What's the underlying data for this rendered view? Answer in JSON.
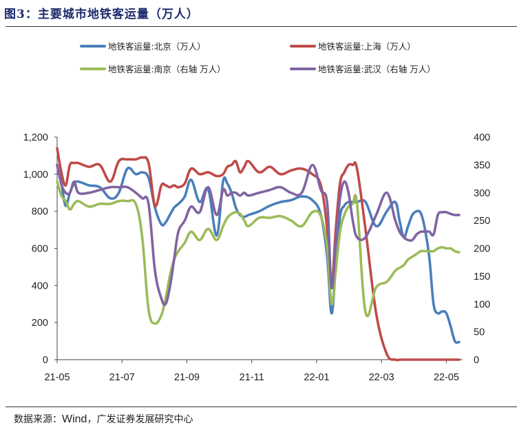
{
  "header": {
    "title": "图3：主要城市地铁客运量（万人）"
  },
  "footer": {
    "source_label": "数据来源：",
    "source_name": "Wind",
    "source_org": "，广发证券发展研究中心"
  },
  "chart_data": {
    "type": "line",
    "title": "图3：主要城市地铁客运量（万人）",
    "x_tick_labels": [
      "21-05",
      "21-07",
      "21-09",
      "21-11",
      "22-01",
      "22-03",
      "22-05"
    ],
    "x_range_days": [
      0,
      380
    ],
    "left_axis": {
      "ticks": [
        0,
        200,
        400,
        600,
        800,
        1000,
        1200
      ],
      "tick_labels": [
        "0",
        "200",
        "400",
        "600",
        "800",
        "1,000",
        "1,200"
      ],
      "ylim": [
        0,
        1200
      ]
    },
    "right_axis": {
      "ticks": [
        0,
        50,
        100,
        150,
        200,
        250,
        300,
        350,
        400
      ],
      "tick_labels": [
        "0",
        "50",
        "100",
        "150",
        "200",
        "250",
        "300",
        "350",
        "400"
      ],
      "ylim": [
        0,
        400
      ]
    },
    "legend_position": "top",
    "series": [
      {
        "name": "地铁客运量:北京（万人）",
        "axis": "left",
        "color": "#4a7ebb",
        "x": [
          0,
          4,
          8,
          12,
          16,
          20,
          30,
          40,
          50,
          58,
          66,
          74,
          80,
          86,
          92,
          98,
          102,
          106,
          110,
          114,
          120,
          126,
          134,
          142,
          150,
          156,
          160,
          164,
          168,
          172,
          176,
          180,
          190,
          200,
          210,
          220,
          230,
          240,
          248,
          254,
          258,
          262,
          266,
          270,
          274,
          278,
          282,
          290,
          300,
          310,
          318,
          322,
          326,
          330,
          334,
          338,
          342,
          346,
          350,
          354,
          358,
          362,
          366,
          370,
          374,
          378
        ],
        "y": [
          1050,
          950,
          830,
          900,
          950,
          960,
          940,
          930,
          870,
          900,
          1030,
          1000,
          1010,
          980,
          820,
          730,
          740,
          780,
          820,
          840,
          880,
          970,
          850,
          920,
          670,
          960,
          950,
          900,
          820,
          780,
          770,
          780,
          800,
          830,
          850,
          860,
          880,
          860,
          780,
          550,
          250,
          500,
          770,
          830,
          850,
          850,
          850,
          850,
          720,
          800,
          850,
          750,
          660,
          720,
          780,
          800,
          790,
          700,
          550,
          300,
          250,
          260,
          250,
          180,
          100,
          95
        ]
      },
      {
        "name": "地铁客运量:上海（万人）",
        "axis": "left",
        "color": "#be4b48",
        "x": [
          0,
          4,
          8,
          12,
          16,
          20,
          30,
          40,
          50,
          58,
          66,
          74,
          80,
          86,
          92,
          98,
          102,
          106,
          110,
          114,
          120,
          126,
          134,
          142,
          150,
          156,
          160,
          164,
          168,
          172,
          176,
          180,
          190,
          200,
          210,
          220,
          230,
          240,
          248,
          254,
          258,
          262,
          266,
          270,
          274,
          278,
          282,
          290,
          300,
          310,
          318,
          322,
          326,
          330,
          334,
          338,
          342,
          346,
          350,
          354,
          358,
          362,
          366,
          370,
          374,
          378
        ],
        "y": [
          1140,
          1010,
          940,
          1050,
          1060,
          1060,
          1040,
          1050,
          960,
          1070,
          1080,
          1080,
          1090,
          1060,
          830,
          940,
          940,
          930,
          940,
          930,
          950,
          1030,
          1000,
          1010,
          990,
          1000,
          1040,
          1050,
          1070,
          1010,
          1040,
          1070,
          1010,
          1040,
          1000,
          1020,
          1030,
          1000,
          940,
          700,
          400,
          700,
          950,
          1010,
          1050,
          1050,
          1030,
          700,
          250,
          30,
          0,
          0,
          0,
          0,
          0,
          0,
          0,
          0,
          0,
          0,
          0,
          0,
          0,
          0,
          0,
          0
        ]
      },
      {
        "name": "地铁客运量:南京（右轴 万人）",
        "axis": "right",
        "color": "#9bbb59",
        "x": [
          0,
          4,
          8,
          12,
          16,
          20,
          30,
          40,
          50,
          58,
          66,
          74,
          80,
          86,
          92,
          98,
          102,
          106,
          110,
          114,
          120,
          126,
          134,
          142,
          150,
          156,
          160,
          164,
          168,
          172,
          176,
          180,
          190,
          200,
          210,
          220,
          230,
          240,
          248,
          254,
          258,
          262,
          266,
          270,
          274,
          278,
          282,
          290,
          300,
          310,
          318,
          322,
          326,
          330,
          334,
          338,
          342,
          346,
          350,
          354,
          358,
          362,
          366,
          370,
          374,
          378
        ],
        "y": [
          320,
          295,
          285,
          270,
          280,
          285,
          275,
          280,
          280,
          285,
          285,
          280,
          220,
          90,
          65,
          80,
          110,
          150,
          180,
          195,
          210,
          230,
          215,
          235,
          215,
          240,
          255,
          262,
          265,
          262,
          250,
          240,
          255,
          255,
          258,
          250,
          240,
          265,
          258,
          200,
          100,
          160,
          230,
          260,
          275,
          280,
          280,
          85,
          130,
          140,
          160,
          165,
          170,
          180,
          185,
          190,
          195,
          195,
          195,
          195,
          200,
          202,
          200,
          200,
          195,
          193
        ]
      },
      {
        "name": "地铁客运量:武汉（右轴 万人）",
        "axis": "right",
        "color": "#8064a2",
        "x": [
          0,
          4,
          8,
          12,
          16,
          20,
          30,
          40,
          50,
          58,
          66,
          74,
          80,
          86,
          92,
          98,
          102,
          106,
          110,
          114,
          120,
          126,
          134,
          142,
          150,
          156,
          160,
          164,
          168,
          172,
          176,
          180,
          190,
          200,
          210,
          220,
          230,
          240,
          248,
          254,
          258,
          262,
          266,
          270,
          274,
          278,
          282,
          290,
          300,
          310,
          318,
          322,
          326,
          330,
          334,
          338,
          342,
          346,
          350,
          354,
          358,
          362,
          366,
          370,
          374,
          378
        ],
        "y": [
          350,
          315,
          300,
          300,
          320,
          300,
          300,
          305,
          310,
          310,
          310,
          300,
          290,
          280,
          160,
          110,
          100,
          130,
          180,
          230,
          250,
          275,
          265,
          310,
          260,
          305,
          295,
          300,
          300,
          295,
          300,
          295,
          300,
          305,
          310,
          300,
          300,
          350,
          305,
          280,
          130,
          210,
          290,
          320,
          300,
          250,
          220,
          220,
          260,
          300,
          250,
          230,
          220,
          215,
          215,
          225,
          230,
          230,
          230,
          225,
          260,
          265,
          265,
          262,
          260,
          260
        ]
      }
    ]
  }
}
